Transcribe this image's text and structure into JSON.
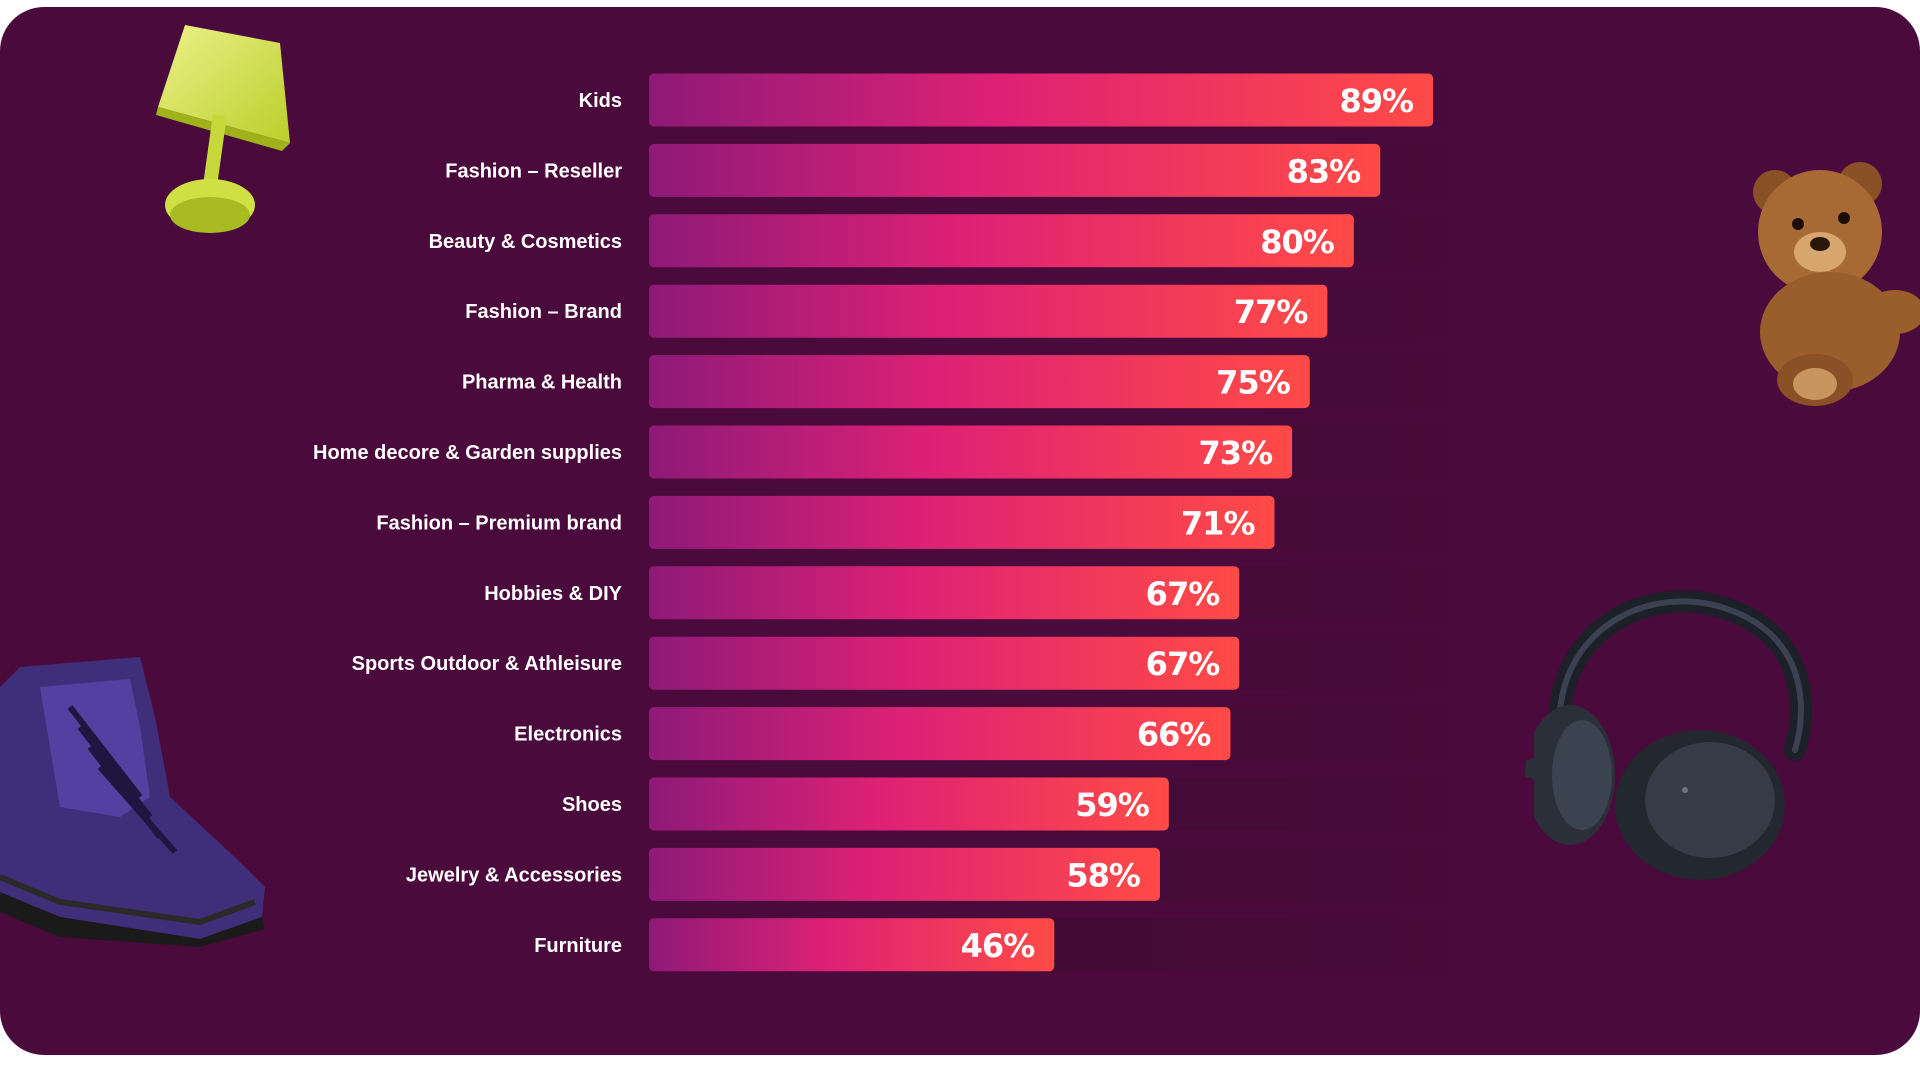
{
  "chart_data": {
    "type": "bar",
    "orientation": "horizontal",
    "categories": [
      "Kids",
      "Fashion – Reseller",
      "Beauty & Cosmetics",
      "Fashion – Brand",
      "Pharma & Health",
      "Home decore & Garden supplies",
      "Fashion – Premium brand",
      "Hobbies & DIY",
      "Sports Outdoor & Athleisure",
      "Electronics",
      "Shoes",
      "Jewelry & Accessories",
      "Furniture"
    ],
    "values": [
      89,
      83,
      80,
      77,
      75,
      73,
      71,
      67,
      67,
      66,
      59,
      58,
      46
    ],
    "value_labels": [
      "89%",
      "83%",
      "80%",
      "77%",
      "75%",
      "73%",
      "71%",
      "67%",
      "67%",
      "66%",
      "59%",
      "58%",
      "46%"
    ],
    "xlim": [
      0,
      100
    ],
    "grid": false,
    "legend": "none"
  },
  "colors": {
    "background": "#4b0a3c",
    "track": "#3a0a30",
    "bar_gradient_start": "#8e1a78",
    "bar_gradient_mid": "#df2175",
    "bar_gradient_end": "#ff4b46",
    "text": "#ffffff"
  },
  "decorations": [
    "lamp-icon",
    "teddy-bear-icon",
    "hiking-boot-icon",
    "headphones-icon"
  ]
}
